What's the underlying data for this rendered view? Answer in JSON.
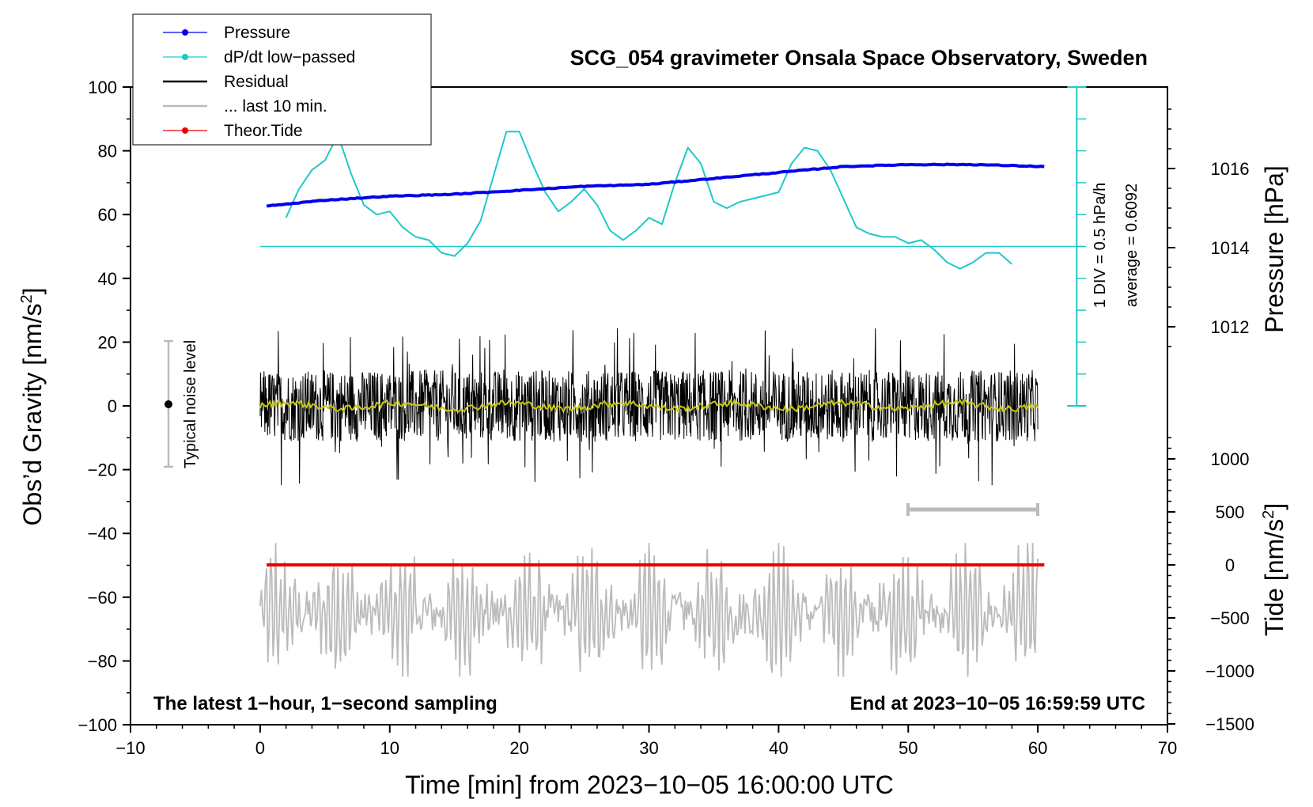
{
  "chart_data": {
    "type": "line",
    "title": "SCG_054 gravimeter Onsala Space Observatory, Sweden",
    "xlabel": "Time [min] from 2023−10−05 16:00:00 UTC",
    "ylabel_left": "Obs’d Gravity [nm/s",
    "ylabel_left_sup": "2",
    "ylabel_left_close": "]",
    "ylabel_right_pressure": "Pressure [hPa]",
    "ylabel_right_tide": "Tide [nm/s",
    "ylabel_right_tide_sup": "2",
    "ylabel_right_tide_close": "]",
    "xlim": [
      -10,
      70
    ],
    "ylim_left": [
      -100,
      100
    ],
    "x_ticks": [
      "−10",
      "0",
      "10",
      "20",
      "30",
      "40",
      "50",
      "60",
      "70"
    ],
    "y_ticks_left": [
      "−100",
      "−80",
      "−60",
      "−40",
      "−20",
      "0",
      "20",
      "40",
      "60",
      "80",
      "100"
    ],
    "pressure_ticks": [
      "1012",
      "1014",
      "1016"
    ],
    "tide_ticks": [
      "−1500",
      "−1000",
      "−500",
      "0",
      "500",
      "1000"
    ],
    "legend": [
      {
        "label": "Pressure",
        "color": "#0000ee",
        "marker": true
      },
      {
        "label": "dP/dt low−passed",
        "color": "#20c8c8",
        "marker": true
      },
      {
        "label": "Residual",
        "color": "#000000",
        "marker": false
      },
      {
        "label": "... last 10 min.",
        "color": "#bbbbbb",
        "marker": false
      },
      {
        "label": "Theor.Tide",
        "color": "#ee0000",
        "marker": true
      }
    ],
    "noise_label": "Typical noise level",
    "noise_range": [
      -20,
      20
    ],
    "scale_label_1": "1 DIV = 0.5 hPa/h",
    "scale_label_2": "average = 0.6092",
    "dpdt_baseline": 50,
    "annotation_left": "The latest 1−hour, 1−second sampling",
    "annotation_right": "End at 2023−10−05 16:59:59 UTC",
    "series": [
      {
        "name": "Pressure",
        "units": "hPa",
        "x": [
          0.5,
          5,
          10,
          15,
          20,
          25,
          30,
          35,
          40,
          45,
          50,
          55,
          60.5
        ],
        "values": [
          1015.05,
          1015.2,
          1015.3,
          1015.35,
          1015.45,
          1015.55,
          1015.6,
          1015.75,
          1015.9,
          1016.05,
          1016.1,
          1016.1,
          1016.05
        ]
      },
      {
        "name": "dP/dt low-passed",
        "units": "nm/s2 (display)",
        "x": [
          2,
          3,
          4,
          5,
          6,
          7,
          8,
          9,
          10,
          11,
          12,
          13,
          14,
          15,
          16,
          17,
          18,
          19,
          20,
          21,
          22,
          23,
          24,
          25,
          26,
          27,
          28,
          29,
          30,
          31,
          32,
          33,
          34,
          35,
          36,
          37,
          38,
          39,
          40,
          41,
          42,
          43,
          44,
          45,
          46,
          47,
          48,
          49,
          50,
          51,
          52,
          53,
          54,
          55,
          56,
          57,
          58
        ],
        "values": [
          59,
          68,
          74,
          77,
          85,
          73,
          63,
          60,
          61,
          56,
          53,
          52,
          48,
          47,
          51,
          58,
          72,
          86,
          86,
          76,
          67,
          61,
          64,
          68,
          63,
          55,
          52,
          55,
          59,
          57,
          70,
          81,
          76,
          64,
          62,
          64,
          65,
          66,
          67,
          76,
          81,
          80,
          74,
          65,
          56,
          54,
          53,
          53,
          51,
          52,
          49,
          45,
          43,
          45,
          48,
          48,
          44.5
        ]
      },
      {
        "name": "Residual",
        "x_range": [
          0,
          60
        ],
        "amplitude_nm_s2": 25
      },
      {
        "name": "Residual smoothed",
        "color": "#c8c814",
        "x_range": [
          0,
          60
        ],
        "amplitude_nm_s2": 2
      },
      {
        "name": "... last 10 min.",
        "x_range": [
          0,
          60
        ],
        "center": -65,
        "amplitude_nm_s2": 20
      },
      {
        "name": "Theor.Tide",
        "x_range": [
          0.5,
          60.5
        ],
        "values_nm_s2_right": [
          0,
          0
        ]
      }
    ]
  }
}
